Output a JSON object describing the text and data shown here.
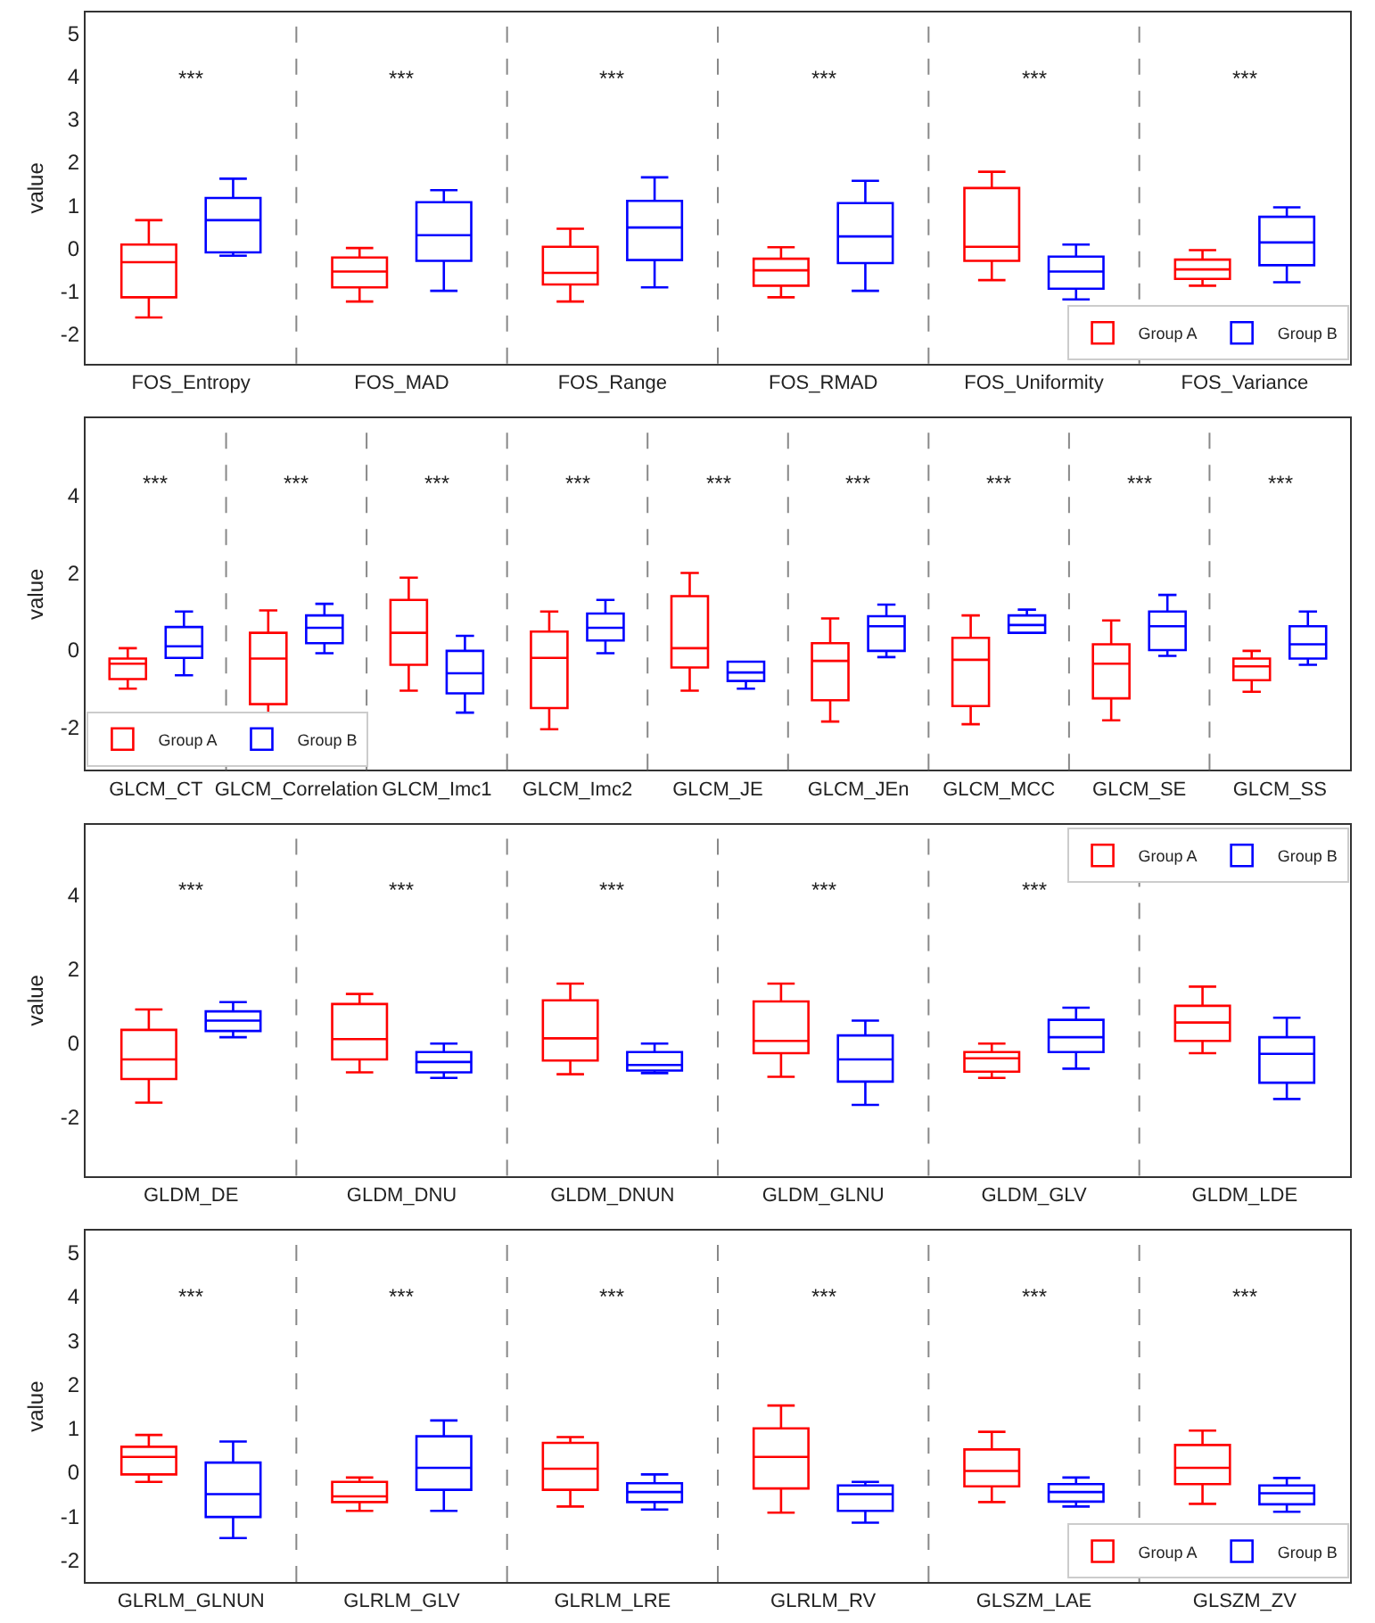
{
  "chart_data": [
    {
      "type": "box",
      "ylabel": "value",
      "categories": [
        "FOS_Entropy",
        "FOS_MAD",
        "FOS_Range",
        "FOS_RMAD",
        "FOS_Uniformity",
        "FOS_Variance"
      ],
      "ylim": [
        -2.7,
        5.5
      ],
      "yticks": [
        -2,
        -1,
        0,
        1,
        2,
        3,
        4,
        5
      ],
      "legend": "bottom right",
      "series": [
        {
          "name": "Group A",
          "color": "#ff0000",
          "boxes": [
            {
              "low": -1.62,
              "q1": -1.15,
              "median": -0.33,
              "q3": 0.08,
              "high": 0.65
            },
            {
              "low": -1.25,
              "q1": -0.92,
              "median": -0.55,
              "q3": -0.22,
              "high": 0.0
            },
            {
              "low": -1.25,
              "q1": -0.85,
              "median": -0.58,
              "q3": 0.03,
              "high": 0.45
            },
            {
              "low": -1.15,
              "q1": -0.88,
              "median": -0.52,
              "q3": -0.25,
              "high": 0.02
            },
            {
              "low": -0.75,
              "q1": -0.3,
              "median": 0.03,
              "q3": 1.4,
              "high": 1.78
            },
            {
              "low": -0.88,
              "q1": -0.72,
              "median": -0.5,
              "q3": -0.27,
              "high": -0.05
            }
          ]
        },
        {
          "name": "Group B",
          "color": "#0000ff",
          "boxes": [
            {
              "low": -0.18,
              "q1": -0.1,
              "median": 0.65,
              "q3": 1.17,
              "high": 1.62
            },
            {
              "low": -1.0,
              "q1": -0.3,
              "median": 0.3,
              "q3": 1.07,
              "high": 1.35
            },
            {
              "low": -0.92,
              "q1": -0.28,
              "median": 0.48,
              "q3": 1.1,
              "high": 1.65
            },
            {
              "low": -1.0,
              "q1": -0.35,
              "median": 0.27,
              "q3": 1.05,
              "high": 1.57
            },
            {
              "low": -1.2,
              "q1": -0.95,
              "median": -0.55,
              "q3": -0.2,
              "high": 0.08
            },
            {
              "low": -0.8,
              "q1": -0.4,
              "median": 0.13,
              "q3": 0.73,
              "high": 0.95
            }
          ]
        }
      ],
      "annotations": [
        "***",
        "***",
        "***",
        "***",
        "***",
        "***"
      ]
    },
    {
      "type": "box",
      "ylabel": "value",
      "categories": [
        "GLCM_CT",
        "GLCM_Correlation",
        "GLCM_Imc1",
        "GLCM_Imc2",
        "GLCM_JE",
        "GLCM_JEn",
        "GLCM_MCC",
        "GLCM_SE",
        "GLCM_SS"
      ],
      "ylim": [
        -3.1,
        6.0
      ],
      "yticks": [
        -2,
        0,
        2,
        4
      ],
      "legend": "bottom left",
      "series": [
        {
          "name": "Group A",
          "color": "#ff0000",
          "boxes": [
            {
              "low": -1.0,
              "q1": -0.75,
              "median": -0.35,
              "q3": -0.22,
              "high": 0.05
            },
            {
              "low": -1.9,
              "q1": -1.4,
              "median": -0.22,
              "q3": 0.45,
              "high": 1.03
            },
            {
              "low": -1.05,
              "q1": -0.38,
              "median": 0.45,
              "q3": 1.3,
              "high": 1.88
            },
            {
              "low": -2.05,
              "q1": -1.5,
              "median": -0.2,
              "q3": 0.48,
              "high": 1.0
            },
            {
              "low": -1.05,
              "q1": -0.45,
              "median": 0.05,
              "q3": 1.4,
              "high": 2.0
            },
            {
              "low": -1.85,
              "q1": -1.3,
              "median": -0.28,
              "q3": 0.18,
              "high": 0.82
            },
            {
              "low": -1.92,
              "q1": -1.45,
              "median": -0.25,
              "q3": 0.32,
              "high": 0.9
            },
            {
              "low": -1.82,
              "q1": -1.25,
              "median": -0.35,
              "q3": 0.15,
              "high": 0.77
            },
            {
              "low": -1.08,
              "q1": -0.78,
              "median": -0.42,
              "q3": -0.22,
              "high": -0.02
            }
          ]
        },
        {
          "name": "Group B",
          "color": "#0000ff",
          "boxes": [
            {
              "low": -0.65,
              "q1": -0.2,
              "median": 0.1,
              "q3": 0.6,
              "high": 1.0
            },
            {
              "low": -0.08,
              "q1": 0.18,
              "median": 0.58,
              "q3": 0.9,
              "high": 1.2
            },
            {
              "low": -1.62,
              "q1": -1.12,
              "median": -0.6,
              "q3": -0.02,
              "high": 0.37
            },
            {
              "low": -0.08,
              "q1": 0.25,
              "median": 0.58,
              "q3": 0.95,
              "high": 1.3
            },
            {
              "low": -1.0,
              "q1": -0.8,
              "median": -0.58,
              "q3": -0.3,
              "high": -0.3
            },
            {
              "low": -0.18,
              "q1": -0.02,
              "median": 0.62,
              "q3": 0.88,
              "high": 1.18
            },
            {
              "low": 0.45,
              "q1": 0.45,
              "median": 0.65,
              "q3": 0.9,
              "high": 1.05
            },
            {
              "low": -0.15,
              "q1": 0.0,
              "median": 0.62,
              "q3": 1.0,
              "high": 1.43
            },
            {
              "low": -0.38,
              "q1": -0.22,
              "median": 0.15,
              "q3": 0.62,
              "high": 1.0
            }
          ]
        }
      ],
      "annotations": [
        "***",
        "***",
        "***",
        "***",
        "***",
        "***",
        "***",
        "***",
        "***"
      ]
    },
    {
      "type": "box",
      "ylabel": "value",
      "categories": [
        "GLDM_DE",
        "GLDM_DNU",
        "GLDM_DNUN",
        "GLDM_GLNU",
        "GLDM_GLV",
        "GLDM_LDE"
      ],
      "ylim": [
        -3.6,
        5.9
      ],
      "yticks": [
        -2,
        0,
        2,
        4
      ],
      "legend": "top right",
      "series": [
        {
          "name": "Group A",
          "color": "#ff0000",
          "boxes": [
            {
              "low": -1.62,
              "q1": -0.98,
              "median": -0.45,
              "q3": 0.35,
              "high": 0.9
            },
            {
              "low": -0.8,
              "q1": -0.45,
              "median": 0.1,
              "q3": 1.05,
              "high": 1.32
            },
            {
              "low": -0.85,
              "q1": -0.48,
              "median": 0.12,
              "q3": 1.15,
              "high": 1.6
            },
            {
              "low": -0.92,
              "q1": -0.28,
              "median": 0.05,
              "q3": 1.12,
              "high": 1.6
            },
            {
              "low": -0.95,
              "q1": -0.78,
              "median": -0.42,
              "q3": -0.25,
              "high": -0.02
            },
            {
              "low": -0.28,
              "q1": 0.05,
              "median": 0.55,
              "q3": 1.0,
              "high": 1.52
            }
          ]
        },
        {
          "name": "Group B",
          "color": "#0000ff",
          "boxes": [
            {
              "low": 0.15,
              "q1": 0.32,
              "median": 0.6,
              "q3": 0.85,
              "high": 1.1
            },
            {
              "low": -0.95,
              "q1": -0.8,
              "median": -0.52,
              "q3": -0.25,
              "high": -0.02
            },
            {
              "low": -0.82,
              "q1": -0.75,
              "median": -0.6,
              "q3": -0.25,
              "high": -0.02
            },
            {
              "low": -1.68,
              "q1": -1.05,
              "median": -0.45,
              "q3": 0.2,
              "high": 0.6
            },
            {
              "low": -0.7,
              "q1": -0.25,
              "median": 0.15,
              "q3": 0.62,
              "high": 0.95
            },
            {
              "low": -1.52,
              "q1": -1.08,
              "median": -0.3,
              "q3": 0.15,
              "high": 0.68
            }
          ]
        }
      ],
      "annotations": [
        "***",
        "***",
        "***",
        "***",
        "***"
      ]
    },
    {
      "type": "box",
      "ylabel": "value",
      "categories": [
        "GLRLM_GLNUN",
        "GLRLM_GLV",
        "GLRLM_LRE",
        "GLRLM_RV",
        "GLSZM_LAE",
        "GLSZM_ZV"
      ],
      "ylim": [
        -2.5,
        5.5
      ],
      "yticks": [
        -2,
        -1,
        0,
        1,
        2,
        3,
        4,
        5
      ],
      "legend": "bottom right",
      "series": [
        {
          "name": "Group A",
          "color": "#ff0000",
          "boxes": [
            {
              "low": -0.22,
              "q1": -0.05,
              "median": 0.35,
              "q3": 0.58,
              "high": 0.85
            },
            {
              "low": -0.88,
              "q1": -0.68,
              "median": -0.55,
              "q3": -0.22,
              "high": -0.12
            },
            {
              "low": -0.78,
              "q1": -0.4,
              "median": 0.08,
              "q3": 0.67,
              "high": 0.8
            },
            {
              "low": -0.92,
              "q1": -0.37,
              "median": 0.35,
              "q3": 1.0,
              "high": 1.52
            },
            {
              "low": -0.68,
              "q1": -0.32,
              "median": 0.03,
              "q3": 0.52,
              "high": 0.92
            },
            {
              "low": -0.72,
              "q1": -0.27,
              "median": 0.1,
              "q3": 0.62,
              "high": 0.95
            }
          ]
        },
        {
          "name": "Group B",
          "color": "#0000ff",
          "boxes": [
            {
              "low": -1.5,
              "q1": -1.02,
              "median": -0.5,
              "q3": 0.22,
              "high": 0.7
            },
            {
              "low": -0.88,
              "q1": -0.4,
              "median": 0.1,
              "q3": 0.82,
              "high": 1.18
            },
            {
              "low": -0.85,
              "q1": -0.68,
              "median": -0.45,
              "q3": -0.25,
              "high": -0.05
            },
            {
              "low": -1.15,
              "q1": -0.88,
              "median": -0.5,
              "q3": -0.3,
              "high": -0.22
            },
            {
              "low": -0.78,
              "q1": -0.67,
              "median": -0.45,
              "q3": -0.27,
              "high": -0.12
            },
            {
              "low": -0.9,
              "q1": -0.73,
              "median": -0.48,
              "q3": -0.3,
              "high": -0.13
            }
          ]
        }
      ],
      "annotations": [
        "***",
        "***",
        "***",
        "***",
        "***",
        "***"
      ]
    }
  ]
}
